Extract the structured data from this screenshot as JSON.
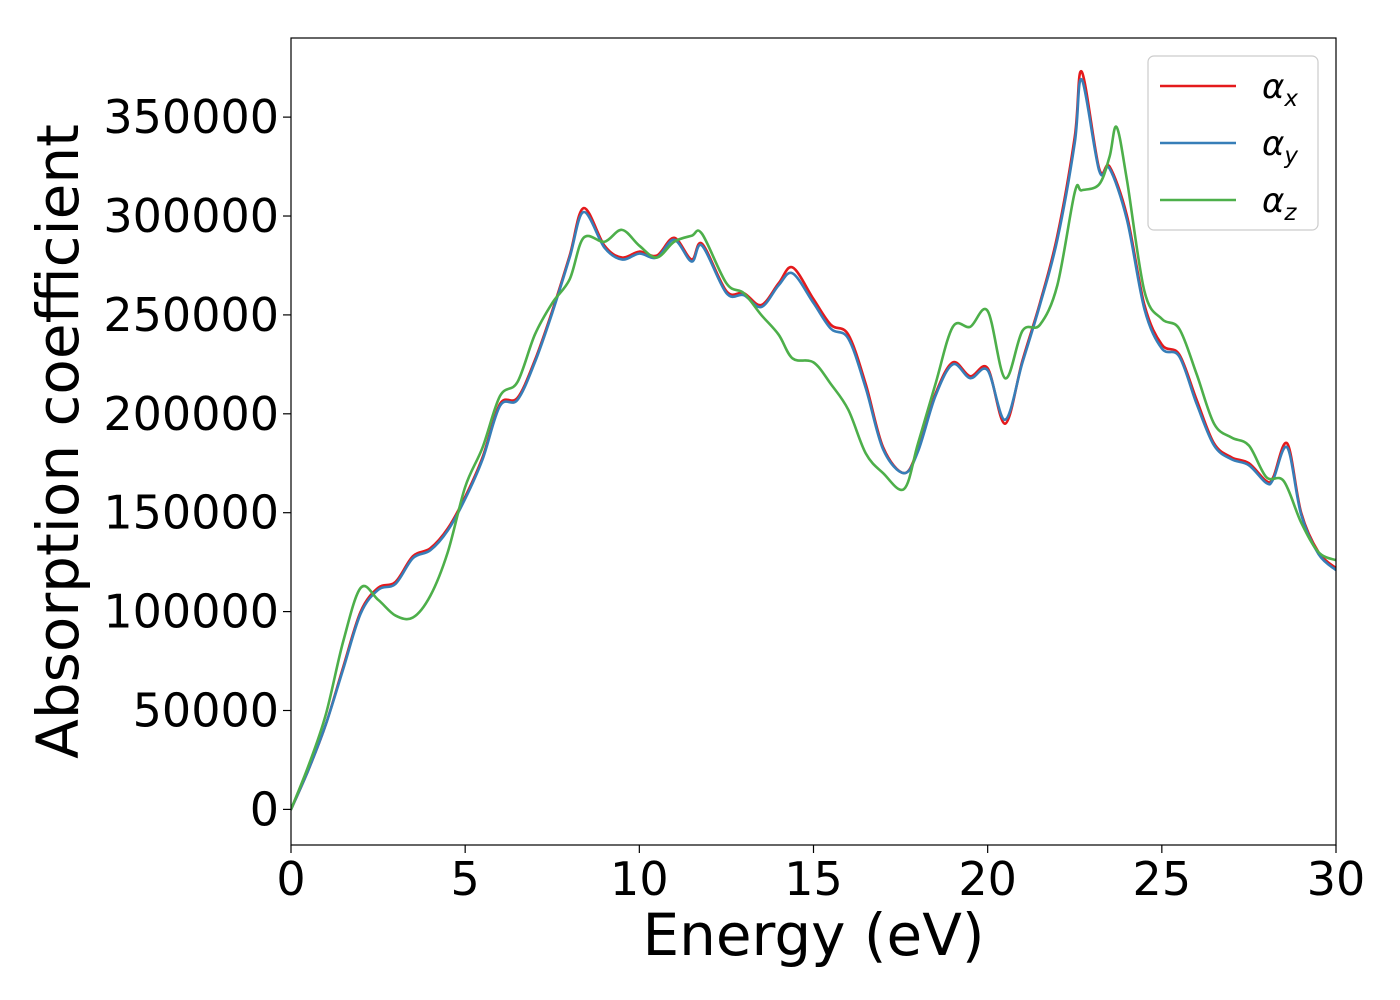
{
  "chart_data": {
    "type": "line",
    "title": "",
    "xlabel": "Energy (eV)",
    "ylabel": "Absorption coefficient",
    "xlim": [
      0,
      30
    ],
    "ylim": [
      -18000,
      390000
    ],
    "xticks": [
      0,
      5,
      10,
      15,
      20,
      25,
      30
    ],
    "yticks": [
      0,
      50000,
      100000,
      150000,
      200000,
      250000,
      300000,
      350000
    ],
    "grid": false,
    "legend_position": "top-right",
    "series": [
      {
        "name": "α",
        "subscript": "x",
        "color": "#e41a1c",
        "points": [
          [
            0,
            0
          ],
          [
            0.5,
            20000
          ],
          [
            1.0,
            43000
          ],
          [
            1.5,
            72000
          ],
          [
            2.0,
            100000
          ],
          [
            2.5,
            112000
          ],
          [
            3.0,
            115000
          ],
          [
            3.5,
            128000
          ],
          [
            4.0,
            132000
          ],
          [
            4.5,
            142000
          ],
          [
            5.0,
            158000
          ],
          [
            5.5,
            178000
          ],
          [
            6.0,
            205000
          ],
          [
            6.5,
            208000
          ],
          [
            7.0,
            227000
          ],
          [
            7.5,
            252000
          ],
          [
            8.0,
            280000
          ],
          [
            8.4,
            304000
          ],
          [
            9.0,
            285000
          ],
          [
            9.5,
            279000
          ],
          [
            10.0,
            282000
          ],
          [
            10.5,
            280000
          ],
          [
            11.0,
            289000
          ],
          [
            11.5,
            278000
          ],
          [
            11.8,
            286000
          ],
          [
            12.5,
            262000
          ],
          [
            13.0,
            261000
          ],
          [
            13.5,
            255000
          ],
          [
            14.0,
            266000
          ],
          [
            14.4,
            274000
          ],
          [
            15.0,
            258000
          ],
          [
            15.5,
            245000
          ],
          [
            16.0,
            240000
          ],
          [
            16.5,
            215000
          ],
          [
            17.0,
            183000
          ],
          [
            17.6,
            170000
          ],
          [
            18.0,
            182000
          ],
          [
            18.5,
            210000
          ],
          [
            19.0,
            226000
          ],
          [
            19.5,
            219000
          ],
          [
            20.0,
            223000
          ],
          [
            20.5,
            195000
          ],
          [
            21.0,
            227000
          ],
          [
            21.5,
            256000
          ],
          [
            22.0,
            290000
          ],
          [
            22.5,
            340000
          ],
          [
            22.7,
            373000
          ],
          [
            23.2,
            324000
          ],
          [
            23.5,
            325000
          ],
          [
            24.0,
            300000
          ],
          [
            24.5,
            255000
          ],
          [
            25.0,
            235000
          ],
          [
            25.5,
            230000
          ],
          [
            26.0,
            207000
          ],
          [
            26.5,
            185000
          ],
          [
            27.0,
            178000
          ],
          [
            27.5,
            175000
          ],
          [
            28.0,
            166000
          ],
          [
            28.2,
            168000
          ],
          [
            28.6,
            185000
          ],
          [
            29.0,
            150000
          ],
          [
            29.5,
            130000
          ],
          [
            30.0,
            122000
          ]
        ]
      },
      {
        "name": "α",
        "subscript": "y",
        "color": "#377eb8",
        "points": [
          [
            0,
            0
          ],
          [
            0.5,
            20000
          ],
          [
            1.0,
            43000
          ],
          [
            1.5,
            71000
          ],
          [
            2.0,
            99000
          ],
          [
            2.5,
            111000
          ],
          [
            3.0,
            114000
          ],
          [
            3.5,
            127000
          ],
          [
            4.0,
            131000
          ],
          [
            4.5,
            141000
          ],
          [
            5.0,
            157000
          ],
          [
            5.5,
            177000
          ],
          [
            6.0,
            204000
          ],
          [
            6.5,
            207000
          ],
          [
            7.0,
            226000
          ],
          [
            7.5,
            251000
          ],
          [
            8.0,
            279000
          ],
          [
            8.4,
            302000
          ],
          [
            9.0,
            284000
          ],
          [
            9.5,
            278000
          ],
          [
            10.0,
            281000
          ],
          [
            10.5,
            279000
          ],
          [
            11.0,
            288000
          ],
          [
            11.5,
            277000
          ],
          [
            11.8,
            285000
          ],
          [
            12.5,
            261000
          ],
          [
            13.0,
            260000
          ],
          [
            13.5,
            254000
          ],
          [
            14.0,
            265000
          ],
          [
            14.4,
            271000
          ],
          [
            15.0,
            256000
          ],
          [
            15.5,
            243000
          ],
          [
            16.0,
            238000
          ],
          [
            16.5,
            213000
          ],
          [
            17.0,
            182000
          ],
          [
            17.6,
            170000
          ],
          [
            18.0,
            181000
          ],
          [
            18.5,
            209000
          ],
          [
            19.0,
            225000
          ],
          [
            19.5,
            218000
          ],
          [
            20.0,
            222000
          ],
          [
            20.5,
            197000
          ],
          [
            21.0,
            226000
          ],
          [
            21.5,
            255000
          ],
          [
            22.0,
            288000
          ],
          [
            22.5,
            337000
          ],
          [
            22.7,
            369000
          ],
          [
            23.2,
            323000
          ],
          [
            23.5,
            324000
          ],
          [
            24.0,
            298000
          ],
          [
            24.5,
            253000
          ],
          [
            25.0,
            233000
          ],
          [
            25.5,
            229000
          ],
          [
            26.0,
            205000
          ],
          [
            26.5,
            184000
          ],
          [
            27.0,
            177000
          ],
          [
            27.5,
            174000
          ],
          [
            28.0,
            165000
          ],
          [
            28.2,
            167000
          ],
          [
            28.6,
            183000
          ],
          [
            29.0,
            149000
          ],
          [
            29.5,
            129000
          ],
          [
            30.0,
            121000
          ]
        ]
      },
      {
        "name": "α",
        "subscript": "z",
        "color": "#4daf4a",
        "points": [
          [
            0,
            0
          ],
          [
            0.5,
            22000
          ],
          [
            1.0,
            48000
          ],
          [
            1.5,
            85000
          ],
          [
            2.0,
            112000
          ],
          [
            2.5,
            106000
          ],
          [
            3.0,
            98000
          ],
          [
            3.5,
            97000
          ],
          [
            4.0,
            108000
          ],
          [
            4.5,
            130000
          ],
          [
            5.0,
            163000
          ],
          [
            5.5,
            183000
          ],
          [
            6.0,
            209000
          ],
          [
            6.5,
            216000
          ],
          [
            7.0,
            240000
          ],
          [
            7.5,
            256000
          ],
          [
            8.0,
            268000
          ],
          [
            8.4,
            289000
          ],
          [
            9.0,
            287000
          ],
          [
            9.5,
            293000
          ],
          [
            10.0,
            285000
          ],
          [
            10.5,
            279000
          ],
          [
            11.0,
            287000
          ],
          [
            11.5,
            290000
          ],
          [
            11.8,
            291000
          ],
          [
            12.5,
            266000
          ],
          [
            13.0,
            261000
          ],
          [
            13.5,
            250000
          ],
          [
            14.0,
            240000
          ],
          [
            14.4,
            228000
          ],
          [
            15.0,
            226000
          ],
          [
            15.5,
            215000
          ],
          [
            16.0,
            202000
          ],
          [
            16.5,
            180000
          ],
          [
            17.0,
            170000
          ],
          [
            17.6,
            162000
          ],
          [
            18.0,
            185000
          ],
          [
            18.5,
            215000
          ],
          [
            19.0,
            244000
          ],
          [
            19.5,
            244000
          ],
          [
            20.0,
            252000
          ],
          [
            20.5,
            218000
          ],
          [
            21.0,
            242000
          ],
          [
            21.5,
            245000
          ],
          [
            22.0,
            265000
          ],
          [
            22.5,
            312000
          ],
          [
            22.7,
            313000
          ],
          [
            23.2,
            316000
          ],
          [
            23.5,
            330000
          ],
          [
            23.7,
            345000
          ],
          [
            24.0,
            318000
          ],
          [
            24.5,
            262000
          ],
          [
            25.0,
            248000
          ],
          [
            25.5,
            243000
          ],
          [
            26.0,
            220000
          ],
          [
            26.5,
            195000
          ],
          [
            27.0,
            188000
          ],
          [
            27.5,
            184000
          ],
          [
            28.0,
            168000
          ],
          [
            28.5,
            166000
          ],
          [
            29.0,
            145000
          ],
          [
            29.5,
            130000
          ],
          [
            30.0,
            126000
          ]
        ]
      }
    ]
  }
}
